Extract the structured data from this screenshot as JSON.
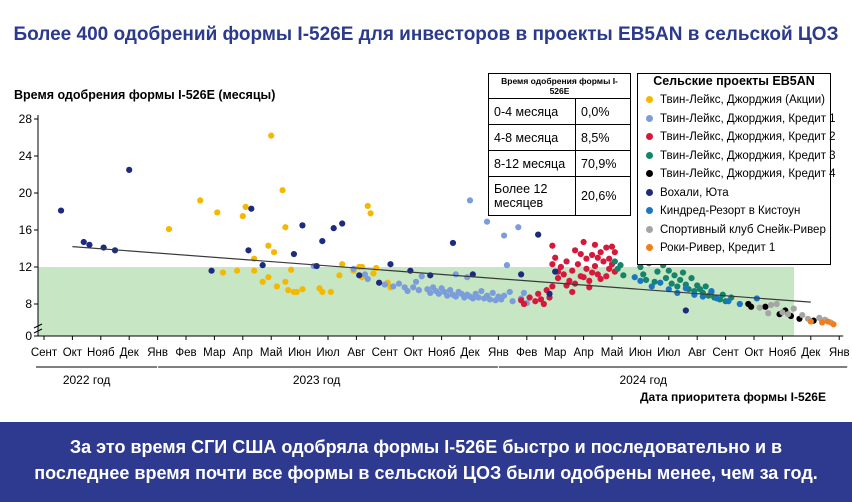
{
  "title": "Более 400 одобрений формы I-526E для инвесторов в проекты EB5AN в сельской ЦОЗ",
  "footer": {
    "line1": "За это время СГИ США одобряла формы I-526E быстро и последовательно и в",
    "line2": "последнее время почти все формы в сельской ЦОЗ были одобрены менее, чем за год."
  },
  "table": {
    "header": "Время одобрения формы I-526E",
    "rows": [
      {
        "range": "0-4 месяца",
        "pct": "0,0%"
      },
      {
        "range": "4-8 месяца",
        "pct": "8,5%"
      },
      {
        "range": "8-12 месяца",
        "pct": "70,9%"
      },
      {
        "range": "Более 12 месяцев",
        "pct": "20,6%"
      }
    ]
  },
  "chart_data": {
    "type": "scatter",
    "title": "Более 400 одобрений формы I-526E для инвесторов в проекты EB5AN в сельской ЦОЗ",
    "ylabel": "Время одобрения формы I-526E (месяцы)",
    "xlabel": "Дата приоритета формы I-526E",
    "ylim": [
      0,
      28
    ],
    "y_ticks": [
      "0",
      "8",
      "12",
      "16",
      "20",
      "24",
      "28"
    ],
    "x_ticks": [
      "Сент",
      "Окт",
      "Нояб",
      "Дек",
      "Янв",
      "Фев",
      "Мар",
      "Апр",
      "Май",
      "Июн",
      "Июл",
      "Авг",
      "Сент",
      "Окт",
      "Нояб",
      "Дек",
      "Янв",
      "Фев",
      "Мар",
      "Апр",
      "Май",
      "Июн",
      "Июл",
      "Авг",
      "Сент",
      "Окт",
      "Нояб",
      "Дек",
      "Янв"
    ],
    "year_labels": [
      "2022 год",
      "2023 год",
      "2024 год"
    ],
    "shaded_band": [
      0,
      12
    ],
    "shade_color": "#c6e6c4",
    "trend": {
      "start": 14.2,
      "end": 8.2
    },
    "legend_title": "Сельские проекты EB5AN",
    "legend_position": "top-right",
    "series": [
      {
        "name": "Твин-Лейкс, Джорджия (Акции)",
        "color": "#f5b800",
        "points": [
          [
            4.4,
            16.1
          ],
          [
            5.5,
            19.2
          ],
          [
            6.1,
            17.9
          ],
          [
            6.3,
            11.4
          ],
          [
            6.8,
            11.6
          ],
          [
            7.0,
            17.5
          ],
          [
            7.1,
            18.5
          ],
          [
            7.4,
            12.9
          ],
          [
            7.4,
            11.6
          ],
          [
            7.7,
            10.4
          ],
          [
            7.9,
            10.9
          ],
          [
            7.9,
            14.3
          ],
          [
            8.0,
            26.2
          ],
          [
            8.1,
            13.6
          ],
          [
            8.2,
            9.9
          ],
          [
            8.4,
            20.3
          ],
          [
            8.5,
            16.3
          ],
          [
            8.5,
            10.4
          ],
          [
            8.6,
            9.5
          ],
          [
            8.7,
            11.7
          ],
          [
            8.8,
            9.3
          ],
          [
            8.9,
            9.3
          ],
          [
            9.1,
            9.6
          ],
          [
            9.7,
            9.7
          ],
          [
            9.8,
            9.3
          ],
          [
            10.1,
            9.3
          ],
          [
            10.4,
            11.1
          ],
          [
            10.5,
            12.3
          ],
          [
            10.9,
            11.6
          ],
          [
            11.1,
            12.0
          ],
          [
            11.2,
            12.0
          ],
          [
            11.2,
            10.9
          ],
          [
            11.4,
            18.6
          ],
          [
            11.5,
            17.8
          ],
          [
            11.6,
            11.3
          ],
          [
            11.7,
            11.9
          ],
          [
            12.2,
            9.8
          ],
          [
            12.1,
            10.3
          ]
        ]
      },
      {
        "name": "Твин-Лейкс, Джорджия, Кредит 1",
        "color": "#7b9dd9",
        "points": [
          [
            9.5,
            12.1
          ],
          [
            10.9,
            11.8
          ],
          [
            11.3,
            11.2
          ],
          [
            11.4,
            10.7
          ],
          [
            12.0,
            10.1
          ],
          [
            12.3,
            9.9
          ],
          [
            12.5,
            10.2
          ],
          [
            12.7,
            9.8
          ],
          [
            12.8,
            9.4
          ],
          [
            13.0,
            9.8
          ],
          [
            13.2,
            9.5
          ],
          [
            13.3,
            11.0
          ],
          [
            13.5,
            9.6
          ],
          [
            13.6,
            9.2
          ],
          [
            13.7,
            9.8
          ],
          [
            13.8,
            9.4
          ],
          [
            13.9,
            9.1
          ],
          [
            14.0,
            9.7
          ],
          [
            14.1,
            9.3
          ],
          [
            14.2,
            8.9
          ],
          [
            14.3,
            9.5
          ],
          [
            14.4,
            9.0
          ],
          [
            14.5,
            8.8
          ],
          [
            14.6,
            9.3
          ],
          [
            14.7,
            9.1
          ],
          [
            14.8,
            8.7
          ],
          [
            14.9,
            9.0
          ],
          [
            15.0,
            19.2
          ],
          [
            15.0,
            8.8
          ],
          [
            15.1,
            8.6
          ],
          [
            15.2,
            9.1
          ],
          [
            15.3,
            8.7
          ],
          [
            15.4,
            9.4
          ],
          [
            15.5,
            8.6
          ],
          [
            15.6,
            16.9
          ],
          [
            15.6,
            8.9
          ],
          [
            15.7,
            8.5
          ],
          [
            15.8,
            9.2
          ],
          [
            15.9,
            8.4
          ],
          [
            16.0,
            8.8
          ],
          [
            16.1,
            8.5
          ],
          [
            16.2,
            15.4
          ],
          [
            16.2,
            8.9
          ],
          [
            16.4,
            9.3
          ],
          [
            16.5,
            8.3
          ],
          [
            16.7,
            16.3
          ],
          [
            16.8,
            8.6
          ],
          [
            16.9,
            9.2
          ],
          [
            17.0,
            8.1
          ],
          [
            14.5,
            11.2
          ],
          [
            14.9,
            10.9
          ],
          [
            16.3,
            12.2
          ],
          [
            13.1,
            10.4
          ]
        ]
      },
      {
        "name": "Твин-Лейкс, Джорджия, Кредит 2",
        "color": "#d6183c",
        "points": [
          [
            16.8,
            8.4
          ],
          [
            16.9,
            8.0
          ],
          [
            17.1,
            8.7
          ],
          [
            17.3,
            8.3
          ],
          [
            17.4,
            9.1
          ],
          [
            17.5,
            8.5
          ],
          [
            17.6,
            8.0
          ],
          [
            17.7,
            9.5
          ],
          [
            17.8,
            8.7
          ],
          [
            17.9,
            12.3
          ],
          [
            17.9,
            9.9
          ],
          [
            17.9,
            14.3
          ],
          [
            18.0,
            13.0
          ],
          [
            18.1,
            11.5
          ],
          [
            18.1,
            10.8
          ],
          [
            18.2,
            12.0
          ],
          [
            18.3,
            11.2
          ],
          [
            18.4,
            12.6
          ],
          [
            18.5,
            10.5
          ],
          [
            18.6,
            11.6
          ],
          [
            18.7,
            13.8
          ],
          [
            18.7,
            10.2
          ],
          [
            18.8,
            12.3
          ],
          [
            18.9,
            11.0
          ],
          [
            18.9,
            13.4
          ],
          [
            19.0,
            14.7
          ],
          [
            19.0,
            10.9
          ],
          [
            19.1,
            11.8
          ],
          [
            19.1,
            12.9
          ],
          [
            19.2,
            10.5
          ],
          [
            19.3,
            13.3
          ],
          [
            19.3,
            11.4
          ],
          [
            19.4,
            14.4
          ],
          [
            19.4,
            12.1
          ],
          [
            19.5,
            11.2
          ],
          [
            19.6,
            13.6
          ],
          [
            19.6,
            10.7
          ],
          [
            19.7,
            12.6
          ],
          [
            19.8,
            14.1
          ],
          [
            19.8,
            11.0
          ],
          [
            19.9,
            12.9
          ],
          [
            19.9,
            11.8
          ],
          [
            20.0,
            14.2
          ],
          [
            20.0,
            12.3
          ],
          [
            20.1,
            11.5
          ],
          [
            18.6,
            9.3
          ],
          [
            18.4,
            10.0
          ],
          [
            19.2,
            9.8
          ],
          [
            19.5,
            13.0
          ],
          [
            20.1,
            13.6
          ]
        ]
      },
      {
        "name": "Твин-Лейкс, Джорджия, Кредит 3",
        "color": "#16836b",
        "points": [
          [
            20.1,
            12.6
          ],
          [
            20.2,
            11.8
          ],
          [
            20.3,
            12.2
          ],
          [
            20.4,
            11.1
          ],
          [
            21.0,
            12.0
          ],
          [
            21.1,
            11.2
          ],
          [
            21.2,
            10.6
          ],
          [
            21.3,
            12.4
          ],
          [
            21.5,
            10.4
          ],
          [
            21.6,
            11.5
          ],
          [
            21.8,
            12.2
          ],
          [
            21.9,
            10.8
          ],
          [
            22.0,
            11.6
          ],
          [
            22.1,
            10.2
          ],
          [
            22.2,
            11.1
          ],
          [
            22.3,
            9.9
          ],
          [
            22.4,
            10.6
          ],
          [
            22.5,
            11.4
          ],
          [
            22.6,
            10.1
          ],
          [
            22.7,
            9.6
          ],
          [
            22.8,
            10.8
          ],
          [
            22.9,
            9.4
          ],
          [
            23.0,
            10.0
          ],
          [
            23.1,
            9.6
          ],
          [
            23.2,
            9.2
          ],
          [
            23.3,
            9.9
          ],
          [
            23.4,
            8.9
          ],
          [
            23.5,
            9.3
          ],
          [
            23.6,
            8.7
          ],
          [
            23.8,
            8.5
          ],
          [
            23.9,
            9.0
          ],
          [
            24.0,
            8.3
          ],
          [
            24.2,
            8.7
          ]
        ]
      },
      {
        "name": "Твин-Лейкс, Джорджия, Кредит 4",
        "color": "#000000",
        "points": [
          [
            24.8,
            8.0
          ],
          [
            24.9,
            7.7
          ],
          [
            25.4,
            7.7
          ],
          [
            25.9,
            6.9
          ],
          [
            26.1,
            7.3
          ],
          [
            26.3,
            6.7
          ],
          [
            26.6,
            6.4
          ],
          [
            27.1,
            6.2
          ]
        ]
      },
      {
        "name": "Вохали, Юта",
        "color": "#1c2a80",
        "points": [
          [
            0.6,
            18.1
          ],
          [
            1.4,
            14.7
          ],
          [
            1.6,
            14.4
          ],
          [
            2.1,
            14.1
          ],
          [
            2.5,
            13.8
          ],
          [
            3.0,
            22.5
          ],
          [
            5.9,
            11.6
          ],
          [
            7.2,
            13.8
          ],
          [
            7.3,
            18.3
          ],
          [
            7.7,
            12.2
          ],
          [
            8.8,
            13.4
          ],
          [
            9.1,
            16.5
          ],
          [
            9.6,
            12.1
          ],
          [
            9.8,
            14.8
          ],
          [
            10.2,
            16.2
          ],
          [
            10.5,
            16.7
          ],
          [
            11.1,
            11.1
          ],
          [
            11.8,
            10.3
          ],
          [
            12.2,
            12.3
          ],
          [
            12.9,
            11.6
          ],
          [
            13.6,
            11.1
          ],
          [
            14.4,
            14.6
          ],
          [
            15.1,
            11.2
          ],
          [
            16.8,
            11.2
          ],
          [
            17.4,
            15.5
          ],
          [
            17.8,
            9.1
          ],
          [
            18.0,
            11.5
          ],
          [
            22.6,
            7.3
          ]
        ]
      },
      {
        "name": "Киндред-Резорт в Кистоун",
        "color": "#1a76c0",
        "points": [
          [
            20.8,
            10.9
          ],
          [
            21.0,
            10.5
          ],
          [
            21.4,
            9.9
          ],
          [
            21.7,
            10.3
          ],
          [
            22.0,
            9.6
          ],
          [
            22.3,
            9.2
          ],
          [
            22.6,
            9.7
          ],
          [
            22.9,
            9.0
          ],
          [
            23.2,
            8.8
          ],
          [
            23.5,
            9.4
          ],
          [
            23.7,
            8.6
          ],
          [
            24.1,
            8.3
          ],
          [
            24.5,
            8.0
          ],
          [
            25.1,
            8.6
          ]
        ]
      },
      {
        "name": "Спортивный клуб Снейк-Ривер",
        "color": "#a5a5a5",
        "points": [
          [
            25.2,
            7.6
          ],
          [
            25.5,
            7.0
          ],
          [
            25.8,
            8.0
          ],
          [
            26.0,
            7.1
          ],
          [
            26.4,
            7.5
          ],
          [
            26.7,
            6.8
          ],
          [
            26.9,
            6.4
          ],
          [
            27.3,
            6.5
          ],
          [
            27.5,
            6.3
          ],
          [
            27.7,
            6.0
          ],
          [
            25.6,
            7.9
          ],
          [
            26.2,
            6.9
          ]
        ]
      },
      {
        "name": "Роки-Ривер, Кредит 1",
        "color": "#f07f1a",
        "points": [
          [
            27.4,
            6.0
          ],
          [
            27.6,
            6.1
          ],
          [
            27.8,
            5.8
          ],
          [
            27.0,
            6.1
          ]
        ]
      }
    ]
  }
}
